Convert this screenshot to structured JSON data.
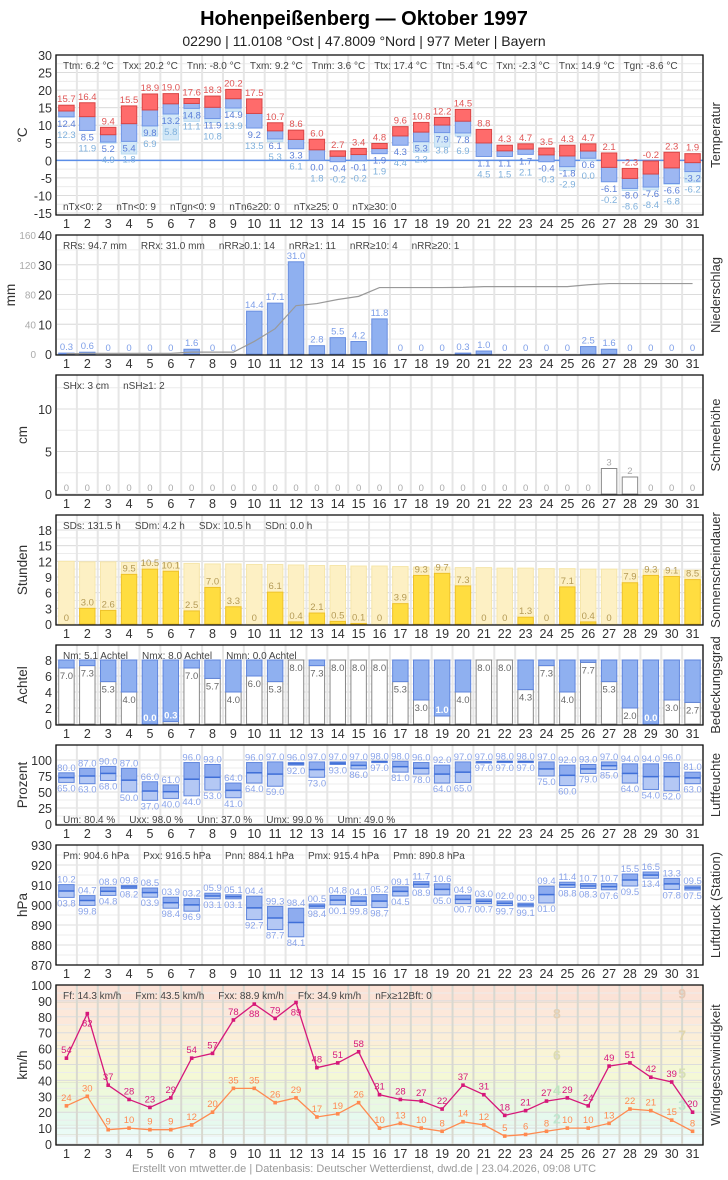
{
  "header": {
    "title": "Hohenpeißenberg  —  Oktober 1997",
    "subtitle": "02290  |  11.0108 °Ost  |  47.8009 °Nord  |  977 Meter  |  Bayern"
  },
  "footer": "Erstellt von mtwetter.de | Datenbasis: Deutscher Wetterdienst, dwd.de | 23.04.2026, 09:08 UTC",
  "colors": {
    "tmax": "#ff6b6b",
    "tmin": "#9db7f2",
    "tground": "#d3e8f7",
    "precip": "#8fb0f0",
    "sun": "#ffdd40",
    "sun_possible": "#fdf0c4",
    "cloud": "#8fb0f0",
    "gust": "#d6187a",
    "wind": "#ff8a50"
  },
  "chart_data": [
    {
      "id": "temperature",
      "type": "bar",
      "right_title": "Temperatur",
      "ylabel": "°C",
      "yticks": [
        30,
        25,
        20,
        15,
        10,
        5,
        0,
        -5,
        -10,
        -15
      ],
      "ylim": [
        -15,
        30
      ],
      "stats": [
        "Ttm: 6.2 °C",
        "Txx: 20.2 °C",
        "Tnn: -8.0 °C",
        "Txm: 9.2 °C",
        "Tnm: 3.6 °C",
        "Ttx: 17.4 °C",
        "Ttn: -5.4 °C",
        "Txn: -2.3 °C",
        "Tnx: 14.9 °C",
        "Tgn: -8.6 °C"
      ],
      "stats2": [
        "nTx<0: 2",
        "nTn<0: 9",
        "nTgn<0: 9",
        "nTn6≥20: 0",
        "nTx≥25: 0",
        "nTx≥30: 0"
      ],
      "series": [
        {
          "key": "tx",
          "values": [
            15.7,
            16.4,
            9.4,
            15.5,
            18.9,
            19.0,
            17.6,
            18.3,
            20.2,
            17.5,
            10.7,
            8.6,
            6.0,
            2.7,
            3.4,
            4.8,
            9.6,
            10.8,
            12.2,
            14.5,
            8.8,
            4.3,
            4.7,
            3.5,
            4.3,
            4.7,
            2.1,
            -2.3,
            -0.2,
            2.3,
            1.9
          ]
        },
        {
          "key": "tn",
          "values": [
            12.4,
            8.5,
            5.2,
            5.4,
            9.8,
            13.2,
            14.8,
            11.9,
            14.9,
            9.2,
            6.1,
            3.3,
            0.0,
            -0.4,
            -0.1,
            1.9,
            4.3,
            5.3,
            7.9,
            7.8,
            1.1,
            1.1,
            1.7,
            -0.4,
            -1.8,
            0.6,
            -6.1,
            -8.0,
            -7.6,
            -6.6,
            -3.2
          ]
        },
        {
          "key": "tg",
          "values": [
            12.3,
            11.9,
            4.9,
            1.8,
            6.9,
            5.8,
            11.1,
            10.8,
            13.9,
            13.5,
            5.3,
            6.1,
            1.8,
            -0.2,
            -0.2,
            1.9,
            4.4,
            2.3,
            3.8,
            6.9,
            4.5,
            1.5,
            2.1,
            -0.3,
            -2.9,
            0.0,
            -0.2,
            -8.6,
            -8.4,
            -6.8,
            -6.2
          ]
        }
      ]
    },
    {
      "id": "precipitation",
      "type": "bar",
      "right_title": "Niederschlag",
      "ylabel": "mm",
      "yticks": [
        40,
        30,
        20,
        10,
        0
      ],
      "ylim": [
        0,
        40
      ],
      "y2ticks": [
        160,
        120,
        80,
        40,
        0
      ],
      "y2lim": [
        0,
        160
      ],
      "stats": [
        "RRs: 94.7 mm",
        "RRx: 31.0 mm",
        "nRR≥0.1: 14",
        "nRR≥1: 11",
        "nRR≥10: 4",
        "nRR≥20: 1"
      ],
      "values": [
        0.3,
        0.6,
        0,
        0,
        0,
        0,
        1.6,
        0,
        0,
        14.4,
        17.1,
        31.0,
        2.8,
        5.5,
        4.2,
        11.8,
        0,
        0,
        0,
        0.3,
        1.0,
        0,
        0,
        0,
        0,
        2.5,
        1.6,
        0,
        0,
        0,
        0
      ]
    },
    {
      "id": "snow",
      "type": "bar",
      "right_title": "Schneehöhe",
      "ylabel": "cm",
      "yticks": [
        10,
        5,
        0
      ],
      "ylim": [
        0,
        14
      ],
      "stats": [
        "SHx: 3 cm",
        "nSH≥1: 2"
      ],
      "values": [
        0,
        0,
        0,
        0,
        0,
        0,
        0,
        0,
        0,
        0,
        0,
        0,
        0,
        0,
        0,
        0,
        0,
        0,
        0,
        0,
        0,
        0,
        0,
        0,
        0,
        0,
        3,
        2,
        0,
        0,
        0
      ]
    },
    {
      "id": "sunshine",
      "type": "bar",
      "right_title": "Sonnenscheindauer",
      "ylabel": "Stunden",
      "yticks": [
        18,
        15,
        12,
        9,
        6,
        3,
        0
      ],
      "ylim": [
        0,
        20
      ],
      "stats": [
        "SDs: 131.5 h",
        "SDm: 4.2 h",
        "SDx: 10.5 h",
        "SDn: 0.0 h"
      ],
      "values": [
        0,
        3.0,
        2.6,
        9.5,
        10.5,
        10.1,
        2.5,
        7.0,
        3.3,
        0,
        6.1,
        0.4,
        2.1,
        0.5,
        0.1,
        0,
        3.9,
        9.3,
        9.7,
        7.3,
        0,
        0,
        1.3,
        0,
        7.1,
        0.4,
        0,
        7.9,
        9.3,
        9.1,
        8.5
      ],
      "possible": [
        12.0,
        11.9,
        11.9,
        11.8,
        11.7,
        11.7,
        11.6,
        11.5,
        11.5,
        11.4,
        11.4,
        11.3,
        11.2,
        11.2,
        11.1,
        11.1,
        11.0,
        10.9,
        10.9,
        10.8,
        10.8,
        10.7,
        10.7,
        10.6,
        10.6,
        10.5,
        10.5,
        10.4,
        10.4,
        10.3,
        10.3
      ]
    },
    {
      "id": "cloud",
      "type": "bar",
      "right_title": "Bedeckungsgrad",
      "ylabel": "Achtel",
      "yticks": [
        8,
        6,
        4,
        2,
        0
      ],
      "ylim": [
        0,
        8
      ],
      "stats": [
        "Nm: 5.1 Achtel",
        "Nmx: 8.0 Achtel",
        "Nmn: 0.0 Achtel"
      ],
      "values": [
        7.0,
        7.3,
        5.3,
        4.0,
        0.0,
        0.3,
        7.0,
        5.7,
        4.0,
        6.0,
        5.3,
        8.0,
        7.3,
        8.0,
        8.0,
        8.0,
        5.3,
        3.0,
        1.0,
        4.0,
        8.0,
        8.0,
        4.3,
        7.3,
        4.0,
        7.7,
        5.3,
        2.0,
        0.0,
        3.0,
        2.7
      ]
    },
    {
      "id": "humidity",
      "type": "range-bar",
      "right_title": "Luftfeuchte",
      "ylabel": "Prozent",
      "yticks": [
        100,
        75,
        50,
        25,
        0
      ],
      "ylim": [
        0,
        100
      ],
      "stats": [
        "Um: 80.4 %",
        "Uxx: 98.0 %",
        "Unn: 37.0 %",
        "Umx: 99.0 %",
        "Umn: 49.0 %"
      ],
      "max": [
        80,
        87,
        90,
        87,
        66,
        61,
        96,
        93,
        64,
        96,
        97,
        96,
        97,
        97,
        97,
        98,
        98,
        96,
        92,
        97,
        97,
        98,
        98,
        97,
        92,
        93,
        97,
        94,
        94,
        96,
        81
      ],
      "min": [
        65,
        63,
        68,
        50,
        37,
        40,
        44,
        53,
        41,
        64,
        59,
        92,
        73,
        93,
        86,
        97,
        81,
        78,
        64,
        65,
        97,
        97,
        97,
        75,
        60,
        79,
        85,
        64,
        54,
        52,
        63
      ]
    },
    {
      "id": "pressure",
      "type": "range-bar",
      "right_title": "Luftdruck (Station)",
      "ylabel": "hPa",
      "yticks": [
        930,
        920,
        910,
        900,
        890,
        880,
        870
      ],
      "ylim": [
        870,
        930
      ],
      "stats": [
        "Pm: 904.6 hPa",
        "Pxx: 916.5 hPa",
        "Pnn: 884.1 hPa",
        "Pmx: 915.4 hPa",
        "Pmn: 890.8 hPa"
      ],
      "max": [
        910.2,
        904.7,
        908.9,
        909.8,
        908.5,
        903.9,
        903.2,
        905.9,
        905.1,
        904.4,
        899.3,
        898.4,
        900.5,
        904.8,
        904.1,
        905.2,
        909.1,
        911.7,
        910.6,
        904.9,
        903.0,
        902.0,
        900.9,
        909.4,
        911.4,
        910.7,
        910.7,
        915.5,
        916.5,
        913.3,
        909.5
      ],
      "min": [
        903.8,
        899.8,
        904.8,
        908.2,
        903.9,
        898.4,
        896.9,
        903.1,
        903.1,
        892.7,
        887.7,
        884.1,
        898.4,
        900.1,
        899.8,
        898.7,
        904.5,
        908.9,
        905.0,
        900.7,
        900.7,
        899.7,
        899.1,
        901.0,
        908.8,
        908.3,
        907.6,
        909.5,
        913.4,
        907.8,
        907.5
      ]
    },
    {
      "id": "wind",
      "type": "line",
      "right_title": "Windgeschwindigkeit",
      "ylabel": "km/h",
      "yticks": [
        100,
        90,
        80,
        70,
        60,
        50,
        40,
        30,
        20,
        10,
        0
      ],
      "ylim": [
        0,
        100
      ],
      "stats": [
        "Ff: 14.3 km/h",
        "Fxm: 43.5 km/h",
        "Fxx: 88.9 km/h",
        "Ffx: 34.9 km/h",
        "nFx≥12Bft: 0"
      ],
      "beaufort_labels": [
        "2",
        "3",
        "4",
        "5",
        "6",
        "7",
        "8",
        "9",
        "10"
      ],
      "series": [
        {
          "key": "gust",
          "values": [
            54,
            82,
            37,
            28,
            23,
            29,
            54,
            57,
            78,
            88,
            79,
            89,
            48,
            51,
            58,
            31,
            28,
            27,
            22,
            37,
            31,
            18,
            21,
            27,
            29,
            24,
            49,
            51,
            42,
            39,
            20
          ]
        },
        {
          "key": "mean",
          "values": [
            24,
            30,
            9,
            10,
            9,
            9,
            12,
            20,
            35,
            35,
            26,
            29,
            17,
            19,
            26,
            10,
            13,
            10,
            8,
            14,
            12,
            5,
            6,
            8,
            10,
            10,
            13,
            22,
            21,
            15,
            8
          ]
        }
      ]
    }
  ],
  "days": [
    "1",
    "2",
    "3",
    "4",
    "5",
    "6",
    "7",
    "8",
    "9",
    "10",
    "11",
    "12",
    "13",
    "14",
    "15",
    "16",
    "17",
    "18",
    "19",
    "20",
    "21",
    "22",
    "23",
    "24",
    "25",
    "26",
    "27",
    "28",
    "29",
    "30",
    "31"
  ]
}
